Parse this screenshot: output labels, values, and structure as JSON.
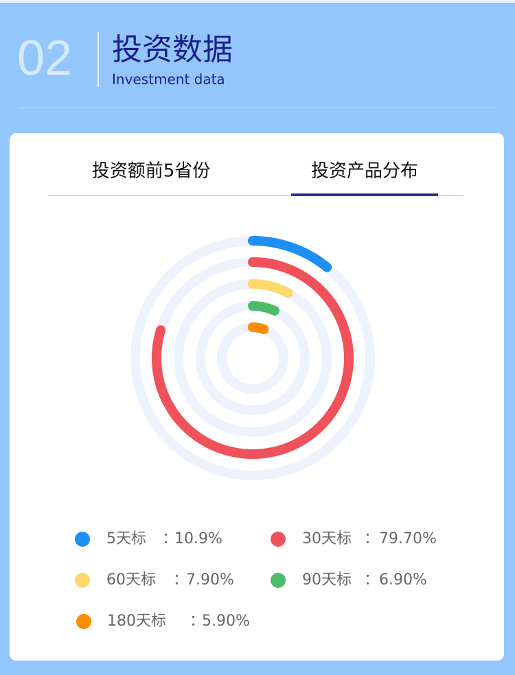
{
  "header": {
    "number": "02",
    "title": "投资数据",
    "subtitle": "Investment data"
  },
  "tabs": [
    "投资额前5省份",
    "投资产品分布"
  ],
  "active_tab": 1,
  "chart_data": {
    "type": "radial-bar",
    "categories": [
      "5天标",
      "30天标",
      "60天标",
      "90天标",
      "180天标"
    ],
    "values": [
      10.9,
      79.7,
      7.9,
      6.9,
      5.9
    ],
    "value_labels": [
      "10.9%",
      "79.70%",
      "7.90%",
      "6.90%",
      "5.90%"
    ],
    "colors": [
      "#1e90f5",
      "#f0515a",
      "#fcd96a",
      "#4cbb6c",
      "#fb8c00"
    ],
    "separator": "：",
    "max": 100
  }
}
